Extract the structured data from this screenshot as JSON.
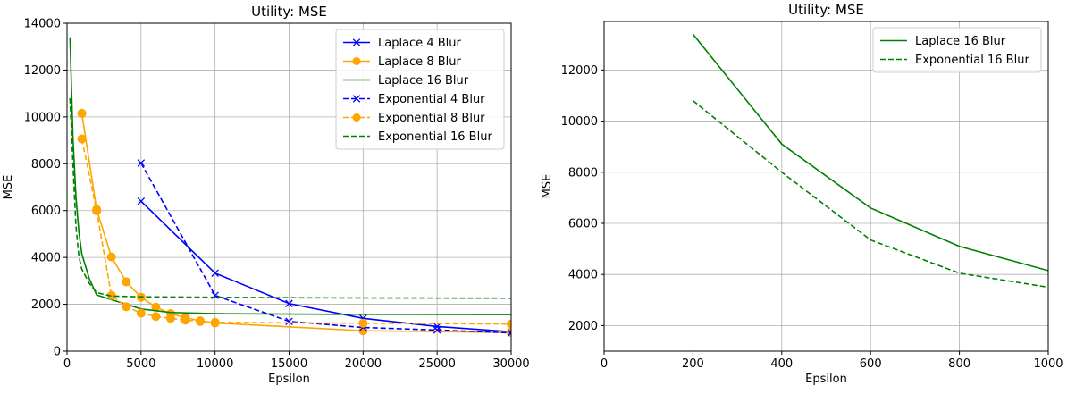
{
  "chart_data": [
    {
      "type": "line",
      "title": "Utility: MSE",
      "xlabel": "Epsilon",
      "ylabel": "MSE",
      "xlim": [
        0,
        30000
      ],
      "ylim": [
        0,
        14000
      ],
      "xticks": [
        0,
        5000,
        10000,
        15000,
        20000,
        25000,
        30000
      ],
      "yticks": [
        0,
        2000,
        4000,
        6000,
        8000,
        10000,
        12000,
        14000
      ],
      "grid": true,
      "legend_position": "top-right",
      "series": [
        {
          "name": "Laplace 4 Blur",
          "color": "#0000ff",
          "dash": "solid",
          "marker": "x",
          "x": [
            5000,
            10000,
            15000,
            20000,
            25000,
            30000
          ],
          "y": [
            6400,
            3330,
            2030,
            1400,
            1050,
            830
          ]
        },
        {
          "name": "Laplace 8 Blur",
          "color": "#ffa500",
          "dash": "solid",
          "marker": "o",
          "x": [
            1000,
            2000,
            3000,
            4000,
            5000,
            6000,
            7000,
            8000,
            9000,
            10000,
            20000,
            30000
          ],
          "y": [
            10150,
            6050,
            4020,
            2960,
            2300,
            1880,
            1600,
            1430,
            1290,
            1200,
            870,
            800
          ]
        },
        {
          "name": "Laplace 16 Blur",
          "color": "#008000",
          "dash": "solid",
          "marker": "none",
          "x": [
            200,
            400,
            600,
            800,
            1000,
            1500,
            2000,
            3000,
            5000,
            7000,
            10000,
            15000,
            20000,
            30000
          ],
          "y": [
            13400,
            9100,
            6600,
            5100,
            4150,
            3100,
            2400,
            2200,
            1800,
            1650,
            1600,
            1580,
            1570,
            1560
          ]
        },
        {
          "name": "Exponential 4 Blur",
          "color": "#0000ff",
          "dash": "dashed",
          "marker": "x",
          "x": [
            5000,
            10000,
            15000,
            20000,
            25000,
            30000
          ],
          "y": [
            8030,
            2380,
            1270,
            1010,
            900,
            780
          ]
        },
        {
          "name": "Exponential 8 Blur",
          "color": "#ffa500",
          "dash": "dashed",
          "marker": "o",
          "x": [
            1000,
            2000,
            3000,
            4000,
            5000,
            6000,
            7000,
            8000,
            9000,
            10000,
            20000,
            30000
          ],
          "y": [
            9060,
            5990,
            2380,
            1900,
            1620,
            1480,
            1400,
            1320,
            1270,
            1230,
            1190,
            1160
          ]
        },
        {
          "name": "Exponential 16 Blur",
          "color": "#008000",
          "dash": "dashed",
          "marker": "none",
          "x": [
            200,
            400,
            600,
            800,
            1000,
            1500,
            2000,
            3000,
            5000,
            10000,
            15000,
            20000,
            30000
          ],
          "y": [
            10800,
            8000,
            5350,
            4050,
            3500,
            2900,
            2500,
            2350,
            2320,
            2300,
            2280,
            2270,
            2260
          ]
        }
      ]
    },
    {
      "type": "line",
      "title": "Utility: MSE",
      "xlabel": "Epsilon",
      "ylabel": "MSE",
      "xlim": [
        0,
        1000
      ],
      "ylim": [
        1000,
        13900
      ],
      "xticks": [
        0,
        200,
        400,
        600,
        800,
        1000
      ],
      "yticks": [
        2000,
        4000,
        6000,
        8000,
        10000,
        12000
      ],
      "grid": true,
      "legend_position": "top-right",
      "series": [
        {
          "name": "Laplace 16 Blur",
          "color": "#008000",
          "dash": "solid",
          "marker": "none",
          "x": [
            200,
            400,
            600,
            800,
            1000
          ],
          "y": [
            13400,
            9100,
            6600,
            5100,
            4150
          ]
        },
        {
          "name": "Exponential 16 Blur",
          "color": "#008000",
          "dash": "dashed",
          "marker": "none",
          "x": [
            200,
            400,
            600,
            800,
            1000
          ],
          "y": [
            10800,
            8000,
            5350,
            4050,
            3500
          ]
        }
      ]
    }
  ]
}
